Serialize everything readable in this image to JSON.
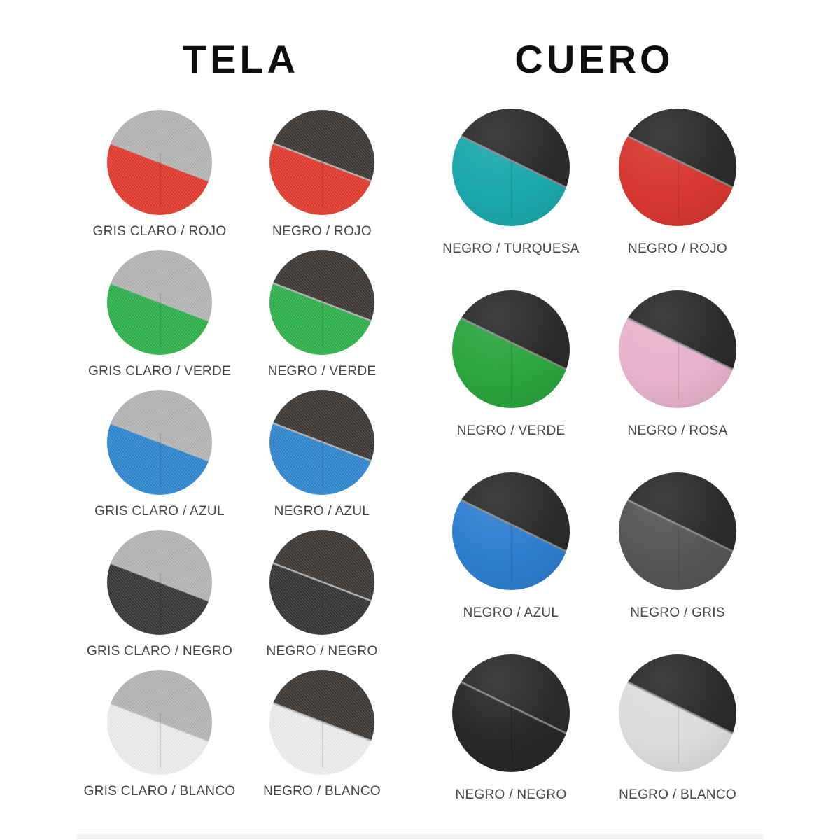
{
  "page": {
    "background_color": "#ffffff",
    "footer_strip_color": "#f3f3f3",
    "title_color": "#0e0e0e",
    "label_color": "#454545"
  },
  "tela": {
    "title": "TELA",
    "swatches": [
      {
        "label": "GRIS CLARO / ROJO",
        "top_name": "GRIS CLARO",
        "bottom_name": "ROJO",
        "top_color": "#b5b5b5",
        "bottom_color": "#e23a2d"
      },
      {
        "label": "NEGRO / ROJO",
        "top_name": "NEGRO",
        "bottom_name": "ROJO",
        "top_color": "#3b3836",
        "bottom_color": "#e23a2d"
      },
      {
        "label": "GRIS CLARO / VERDE",
        "top_name": "GRIS CLARO",
        "bottom_name": "VERDE",
        "top_color": "#b5b5b5",
        "bottom_color": "#2db14b"
      },
      {
        "label": "NEGRO / VERDE",
        "top_name": "NEGRO",
        "bottom_name": "VERDE",
        "top_color": "#3b3836",
        "bottom_color": "#2db14b"
      },
      {
        "label": "GRIS CLARO / AZUL",
        "top_name": "GRIS CLARO",
        "bottom_name": "AZUL",
        "top_color": "#b5b5b5",
        "bottom_color": "#2e86d0"
      },
      {
        "label": "NEGRO / AZUL",
        "top_name": "NEGRO",
        "bottom_name": "AZUL",
        "top_color": "#3b3836",
        "bottom_color": "#2e86d0"
      },
      {
        "label": "GRIS CLARO / NEGRO",
        "top_name": "GRIS CLARO",
        "bottom_name": "NEGRO",
        "top_color": "#b5b5b5",
        "bottom_color": "#373737"
      },
      {
        "label": "NEGRO / NEGRO",
        "top_name": "NEGRO",
        "bottom_name": "NEGRO",
        "top_color": "#3b3836",
        "bottom_color": "#343434"
      },
      {
        "label": "GRIS CLARO / BLANCO",
        "top_name": "GRIS CLARO",
        "bottom_name": "BLANCO",
        "top_color": "#b5b5b5",
        "bottom_color": "#ebebeb"
      },
      {
        "label": "NEGRO / BLANCO",
        "top_name": "NEGRO",
        "bottom_name": "BLANCO",
        "top_color": "#3b3836",
        "bottom_color": "#ececec"
      }
    ]
  },
  "cuero": {
    "title": "CUERO",
    "swatches": [
      {
        "label": "NEGRO / TURQUESA",
        "top_name": "NEGRO",
        "bottom_name": "TURQUESA",
        "top_color": "#2b2b2b",
        "bottom_color": "#1ba8ac"
      },
      {
        "label": "NEGRO / ROJO",
        "top_name": "NEGRO",
        "bottom_name": "ROJO",
        "top_color": "#2b2b2b",
        "bottom_color": "#d73730"
      },
      {
        "label": "NEGRO / VERDE",
        "top_name": "NEGRO",
        "bottom_name": "VERDE",
        "top_color": "#2b2b2b",
        "bottom_color": "#2ba53d"
      },
      {
        "label": "NEGRO / ROSA",
        "top_name": "NEGRO",
        "bottom_name": "ROSA",
        "top_color": "#2b2b2b",
        "bottom_color": "#e8b2cc"
      },
      {
        "label": "NEGRO / AZUL",
        "top_name": "NEGRO",
        "bottom_name": "AZUL",
        "top_color": "#2b2b2b",
        "bottom_color": "#2e7ecf"
      },
      {
        "label": "NEGRO / GRIS",
        "top_name": "NEGRO",
        "bottom_name": "GRIS",
        "top_color": "#2b2b2b",
        "bottom_color": "#565656"
      },
      {
        "label": "NEGRO / NEGRO",
        "top_name": "NEGRO",
        "bottom_name": "NEGRO",
        "top_color": "#2b2b2b",
        "bottom_color": "#282828"
      },
      {
        "label": "NEGRO / BLANCO",
        "top_name": "NEGRO",
        "bottom_name": "BLANCO",
        "top_color": "#2b2b2b",
        "bottom_color": "#dcdcdc"
      }
    ]
  }
}
